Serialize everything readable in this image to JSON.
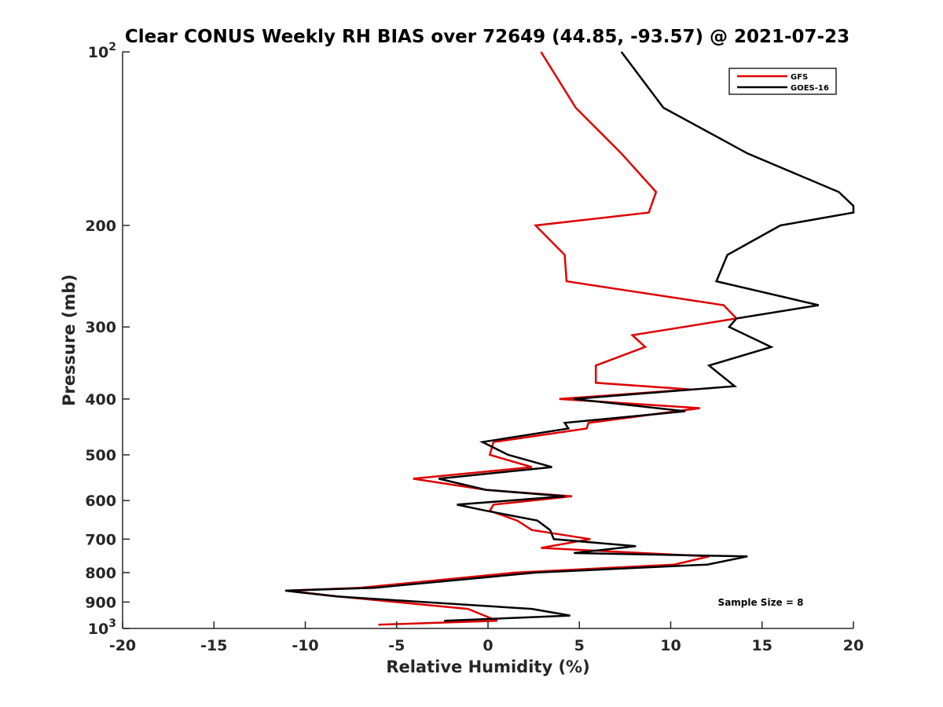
{
  "chart_data": {
    "type": "line",
    "title": "Clear CONUS Weekly RH BIAS over 72649 (44.85, -93.57) @ 2021-07-23",
    "xlabel": "Relative Humidity (%)",
    "ylabel": "Pressure (mb)",
    "xlim": [
      -20,
      20
    ],
    "ylim": [
      100,
      1000
    ],
    "y_scale": "log",
    "y_reversed": true,
    "grid": false,
    "legend_position": "top-right",
    "x_ticks": [
      -20,
      -15,
      -10,
      -5,
      0,
      5,
      10,
      15,
      20
    ],
    "x_tick_labels": [
      "-20",
      "-15",
      "-10",
      "-5",
      "0",
      "5",
      "10",
      "15",
      "20"
    ],
    "y_ticks": [
      100,
      200,
      300,
      400,
      500,
      600,
      700,
      800,
      900,
      1000
    ],
    "y_tick_labels": [
      {
        "base": "10",
        "exp": "2"
      },
      {
        "base": "200"
      },
      {
        "base": "300"
      },
      {
        "base": "400"
      },
      {
        "base": "500"
      },
      {
        "base": "600"
      },
      {
        "base": "700"
      },
      {
        "base": "800"
      },
      {
        "base": "900"
      },
      {
        "base": "10",
        "exp": "3"
      }
    ],
    "annotation": "Sample Size = 8",
    "series": [
      {
        "name": "GFS",
        "color": "#dd0000",
        "points": [
          [
            2.9,
            100
          ],
          [
            4.8,
            125
          ],
          [
            7.3,
            150
          ],
          [
            9.2,
            175
          ],
          [
            8.8,
            190
          ],
          [
            2.6,
            200
          ],
          [
            4.2,
            225
          ],
          [
            4.3,
            250
          ],
          [
            12.9,
            275
          ],
          [
            13.6,
            290
          ],
          [
            7.9,
            310
          ],
          [
            8.6,
            325
          ],
          [
            5.9,
            350
          ],
          [
            5.9,
            375
          ],
          [
            11.1,
            385
          ],
          [
            3.9,
            400
          ],
          [
            11.6,
            415
          ],
          [
            5.5,
            440
          ],
          [
            5.4,
            450
          ],
          [
            0.3,
            475
          ],
          [
            0.1,
            500
          ],
          [
            2.4,
            525
          ],
          [
            -4.1,
            550
          ],
          [
            -0.1,
            575
          ],
          [
            4.6,
            590
          ],
          [
            0.3,
            610
          ],
          [
            0.1,
            625
          ],
          [
            1.6,
            650
          ],
          [
            2.4,
            675
          ],
          [
            5.6,
            700
          ],
          [
            2.9,
            725
          ],
          [
            12.1,
            750
          ],
          [
            10.2,
            775
          ],
          [
            1.5,
            800
          ],
          [
            -7.0,
            850
          ],
          [
            -11.0,
            860
          ],
          [
            -8.2,
            880
          ],
          [
            -1.1,
            925
          ],
          [
            -0.2,
            950
          ],
          [
            0.5,
            970
          ],
          [
            -6.0,
            985
          ]
        ]
      },
      {
        "name": "GOES-16",
        "color": "#000000",
        "points": [
          [
            7.3,
            100
          ],
          [
            9.6,
            125
          ],
          [
            14.2,
            150
          ],
          [
            19.2,
            175
          ],
          [
            20.0,
            185
          ],
          [
            20.0,
            190
          ],
          [
            16.0,
            200
          ],
          [
            13.1,
            225
          ],
          [
            12.5,
            250
          ],
          [
            18.1,
            275
          ],
          [
            13.6,
            290
          ],
          [
            13.2,
            300
          ],
          [
            15.5,
            325
          ],
          [
            12.1,
            350
          ],
          [
            13.5,
            380
          ],
          [
            4.7,
            400
          ],
          [
            10.8,
            420
          ],
          [
            4.2,
            440
          ],
          [
            4.4,
            450
          ],
          [
            -0.3,
            475
          ],
          [
            1.1,
            500
          ],
          [
            3.5,
            525
          ],
          [
            -2.7,
            550
          ],
          [
            -0.1,
            575
          ],
          [
            4.2,
            590
          ],
          [
            -1.7,
            610
          ],
          [
            -0.1,
            625
          ],
          [
            2.7,
            650
          ],
          [
            3.4,
            675
          ],
          [
            3.6,
            700
          ],
          [
            8.1,
            720
          ],
          [
            4.7,
            740
          ],
          [
            14.2,
            750
          ],
          [
            12.0,
            775
          ],
          [
            2.6,
            800
          ],
          [
            -6.2,
            850
          ],
          [
            -11.1,
            860
          ],
          [
            -8.3,
            880
          ],
          [
            2.4,
            925
          ],
          [
            4.5,
            950
          ],
          [
            -2.4,
            970
          ]
        ]
      }
    ]
  }
}
